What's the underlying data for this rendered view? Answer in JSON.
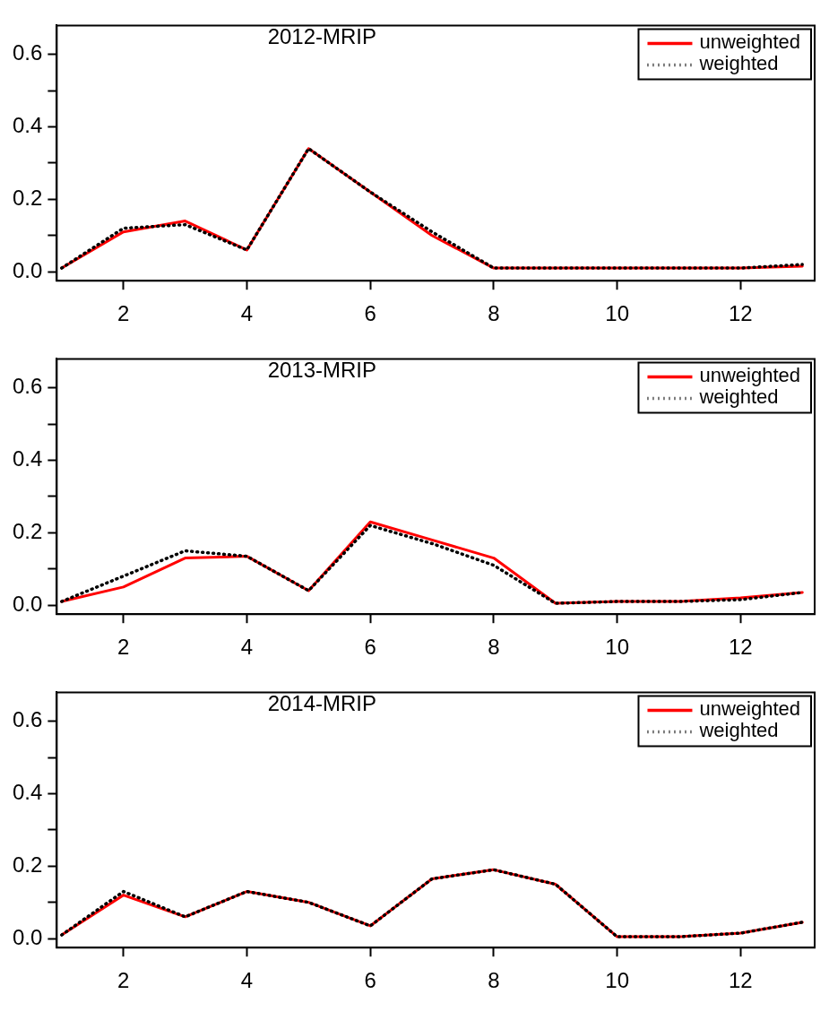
{
  "chart_data": [
    {
      "type": "line",
      "title": "2012-MRIP",
      "x": [
        1,
        2,
        3,
        4,
        5,
        6,
        7,
        8,
        9,
        10,
        11,
        12,
        13
      ],
      "xlim": [
        0.92,
        13.2
      ],
      "xticks": [
        2,
        4,
        6,
        8,
        10,
        12
      ],
      "ylim": [
        -0.025,
        0.68
      ],
      "yticks": [
        {
          "value": 0,
          "label": "0.0"
        },
        {
          "value": 0.1,
          "label": null
        },
        0.2,
        {
          "value": 0.3,
          "label": null
        },
        0.4,
        {
          "value": 0.5,
          "label": null
        },
        0.6
      ],
      "grid": false,
      "legend": "top right",
      "marker": "none",
      "series": [
        {
          "name": "unweighted",
          "color": "#ff0000",
          "line_style": "solid",
          "values": [
            0.01,
            0.11,
            0.14,
            0.06,
            0.34,
            0.22,
            0.1,
            0.01,
            0.01,
            0.01,
            0.01,
            0.01,
            0.015
          ]
        },
        {
          "name": "weighted",
          "color": "#000000",
          "line_style": "dotted",
          "values": [
            0.01,
            0.12,
            0.13,
            0.06,
            0.34,
            0.22,
            0.11,
            0.01,
            0.01,
            0.01,
            0.01,
            0.01,
            0.02
          ]
        }
      ]
    },
    {
      "type": "line",
      "title": "2013-MRIP",
      "x": [
        1,
        2,
        3,
        4,
        5,
        6,
        7,
        8,
        9,
        10,
        11,
        12,
        13
      ],
      "xlim": [
        0.92,
        13.2
      ],
      "xticks": [
        2,
        4,
        6,
        8,
        10,
        12
      ],
      "ylim": [
        -0.025,
        0.68
      ],
      "yticks": [
        {
          "value": 0,
          "label": "0.0"
        },
        {
          "value": 0.1,
          "label": null
        },
        0.2,
        {
          "value": 0.3,
          "label": null
        },
        0.4,
        {
          "value": 0.5,
          "label": null
        },
        0.6
      ],
      "grid": false,
      "legend": "top right",
      "marker": "none",
      "series": [
        {
          "name": "unweighted",
          "color": "#ff0000",
          "line_style": "solid",
          "values": [
            0.01,
            0.05,
            0.13,
            0.135,
            0.04,
            0.23,
            0.18,
            0.13,
            0.005,
            0.01,
            0.01,
            0.02,
            0.035
          ]
        },
        {
          "name": "weighted",
          "color": "#000000",
          "line_style": "dotted",
          "values": [
            0.01,
            0.08,
            0.15,
            0.135,
            0.04,
            0.22,
            0.17,
            0.11,
            0.005,
            0.01,
            0.01,
            0.015,
            0.035
          ]
        }
      ]
    },
    {
      "type": "line",
      "title": "2014-MRIP",
      "x": [
        1,
        2,
        3,
        4,
        5,
        6,
        7,
        8,
        9,
        10,
        11,
        12,
        13
      ],
      "xlim": [
        0.92,
        13.2
      ],
      "xticks": [
        2,
        4,
        6,
        8,
        10,
        12
      ],
      "ylim": [
        -0.025,
        0.68
      ],
      "yticks": [
        {
          "value": 0,
          "label": "0.0"
        },
        {
          "value": 0.1,
          "label": null
        },
        0.2,
        {
          "value": 0.3,
          "label": null
        },
        0.4,
        {
          "value": 0.5,
          "label": null
        },
        0.6
      ],
      "grid": false,
      "legend": "top right",
      "marker": "none",
      "series": [
        {
          "name": "unweighted",
          "color": "#ff0000",
          "line_style": "solid",
          "values": [
            0.01,
            0.12,
            0.06,
            0.13,
            0.1,
            0.035,
            0.165,
            0.19,
            0.15,
            0.005,
            0.005,
            0.015,
            0.045
          ]
        },
        {
          "name": "weighted",
          "color": "#000000",
          "line_style": "dotted",
          "values": [
            0.01,
            0.13,
            0.06,
            0.13,
            0.1,
            0.035,
            0.165,
            0.19,
            0.15,
            0.005,
            0.005,
            0.015,
            0.045
          ]
        }
      ]
    }
  ]
}
